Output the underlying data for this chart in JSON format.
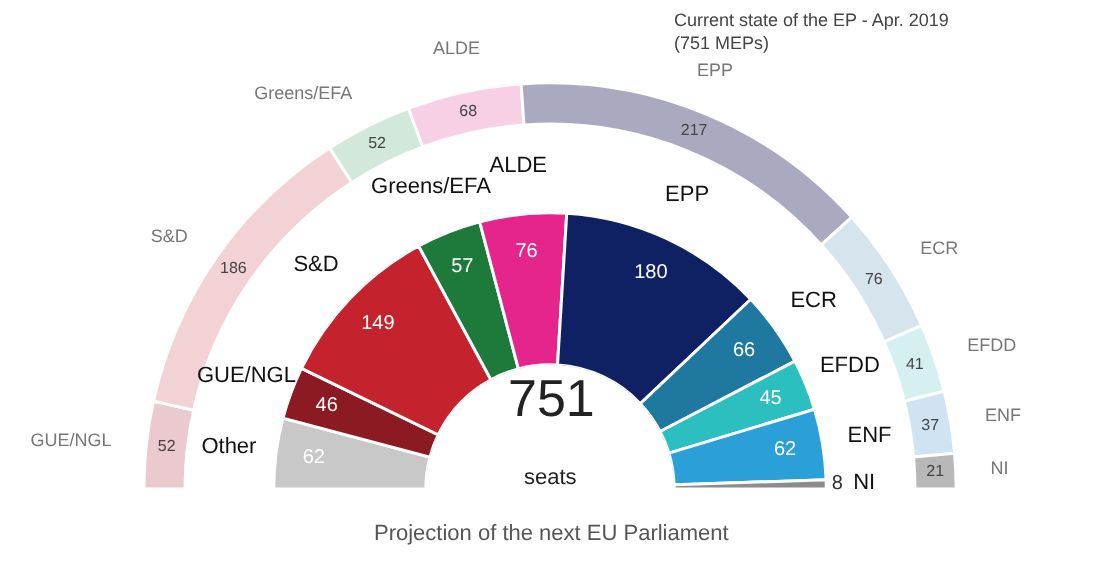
{
  "chart_data": {
    "type": "donut",
    "annotations": [
      "751",
      "seats"
    ],
    "categories": [
      "Other",
      "GUE/NGL",
      "S&D",
      "Greens/EFA",
      "ALDE",
      "EPP",
      "ECR",
      "EFDD",
      "ENF",
      "NI"
    ],
    "series": [
      {
        "name": "Projection of the next EU Parliament",
        "values": [
          62,
          46,
          149,
          57,
          76,
          180,
          66,
          45,
          62,
          8
        ],
        "colors": [
          "#c8c8c8",
          "#8b1a22",
          "#c4222c",
          "#1e7a3a",
          "#e5258c",
          "#0f2163",
          "#1f78a0",
          "#2bbfbf",
          "#2a9fd8",
          "#8c8c8c"
        ]
      },
      {
        "name": "Current state of the EP - Apr. 2019 (751 MEPs)",
        "values": [
          null,
          52,
          186,
          52,
          68,
          217,
          76,
          41,
          37,
          21
        ],
        "colors": [
          null,
          "#eacacf",
          "#f2d2d5",
          "#d2e8da",
          "#f7d0e6",
          "#a9aac0",
          "#d6e4ee",
          "#d6f0f2",
          "#cfe3f3",
          "#b8b8b8"
        ]
      }
    ],
    "data_labels": true
  }
}
